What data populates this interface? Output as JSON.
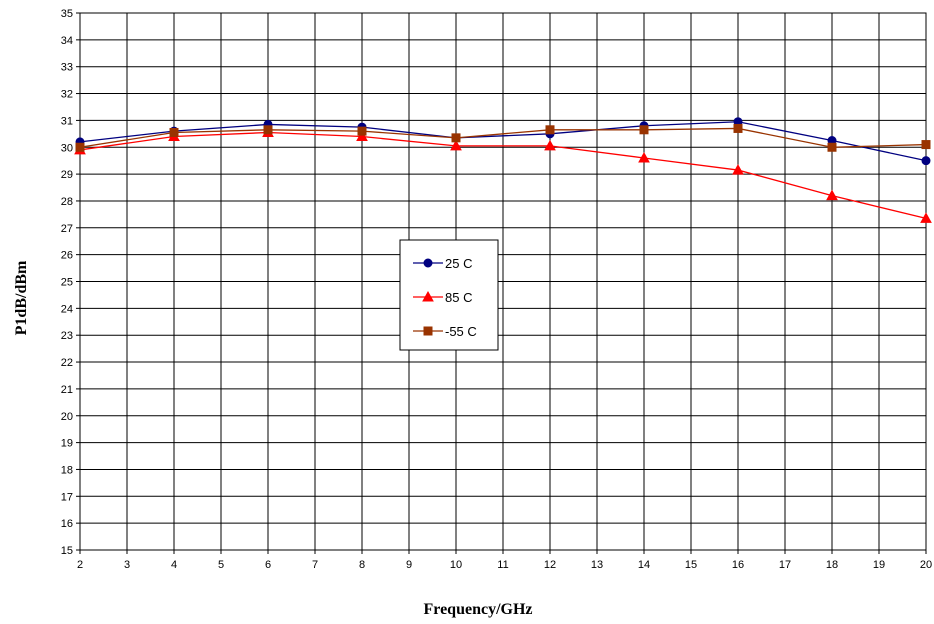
{
  "chart_data": {
    "type": "line",
    "xlabel": "Frequency/GHz",
    "ylabel": "P1dB/dBm",
    "xlim": [
      2,
      20
    ],
    "ylim": [
      15,
      35
    ],
    "x_ticks": [
      2,
      3,
      4,
      5,
      6,
      7,
      8,
      9,
      10,
      11,
      12,
      13,
      14,
      15,
      16,
      17,
      18,
      19,
      20
    ],
    "y_ticks": [
      15,
      16,
      17,
      18,
      19,
      20,
      21,
      22,
      23,
      24,
      25,
      26,
      27,
      28,
      29,
      30,
      31,
      32,
      33,
      34,
      35
    ],
    "grid": true,
    "legend_position": "center",
    "series": [
      {
        "name": "25 C",
        "color": "#000080",
        "marker": "circle",
        "x": [
          2,
          4,
          6,
          8,
          10,
          12,
          14,
          16,
          18,
          20
        ],
        "y": [
          30.2,
          30.6,
          30.85,
          30.75,
          30.35,
          30.5,
          30.8,
          30.95,
          30.25,
          29.5
        ]
      },
      {
        "name": "85 C",
        "color": "#ff0000",
        "marker": "triangle",
        "x": [
          2,
          4,
          6,
          8,
          10,
          12,
          14,
          16,
          18,
          20
        ],
        "y": [
          29.9,
          30.4,
          30.55,
          30.4,
          30.05,
          30.05,
          29.6,
          29.15,
          28.2,
          27.35
        ]
      },
      {
        "name": "-55 C",
        "color": "#993300",
        "marker": "square",
        "x": [
          2,
          4,
          6,
          8,
          10,
          12,
          14,
          16,
          18,
          20
        ],
        "y": [
          30.0,
          30.55,
          30.65,
          30.6,
          30.35,
          30.65,
          30.65,
          30.7,
          30.0,
          30.1
        ]
      }
    ]
  }
}
